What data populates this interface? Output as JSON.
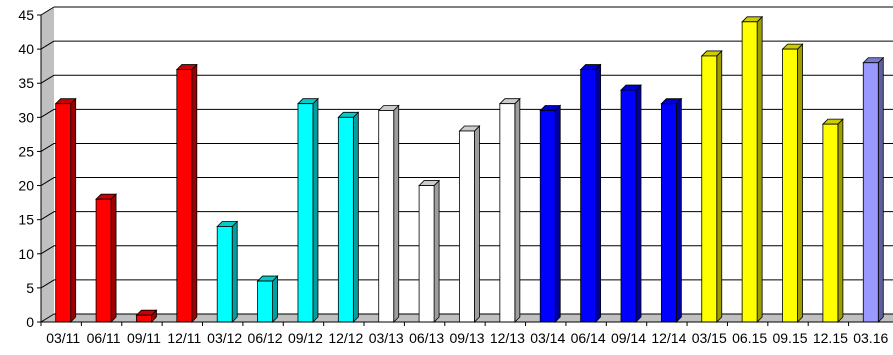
{
  "chart_data": {
    "type": "bar",
    "style": "3d-column",
    "categories": [
      "03/11",
      "06/11",
      "09/11",
      "12/11",
      "03/12",
      "06/12",
      "09/12",
      "12/12",
      "03/13",
      "06/13",
      "09/13",
      "12/13",
      "03/14",
      "06/14",
      "09/14",
      "12/14",
      "03/15",
      "06.15",
      "09.15",
      "12.15",
      "03.16"
    ],
    "values": [
      32,
      18,
      1,
      37,
      14,
      6,
      32,
      30,
      31,
      20,
      28,
      32,
      31,
      37,
      34,
      32,
      39,
      44,
      40,
      29,
      38
    ],
    "bar_colors": [
      "#ff0000",
      "#ff0000",
      "#ff0000",
      "#ff0000",
      "#00ffff",
      "#00ffff",
      "#00ffff",
      "#00ffff",
      "#ffffff",
      "#ffffff",
      "#ffffff",
      "#ffffff",
      "#0000ff",
      "#0000ff",
      "#0000ff",
      "#0000ff",
      "#ffff00",
      "#ffff00",
      "#ffff00",
      "#ffff00",
      "#9999ff"
    ],
    "ylim": [
      0,
      45
    ],
    "yticks": [
      0,
      5,
      10,
      15,
      20,
      25,
      30,
      35,
      40,
      45
    ],
    "grid": true,
    "title": "",
    "xlabel": "",
    "ylabel": ""
  },
  "colors": {
    "gridline": "#000000",
    "wall": "#ffffff",
    "side_wall": "#c0c0c0",
    "floor": "#c0c0c0"
  }
}
